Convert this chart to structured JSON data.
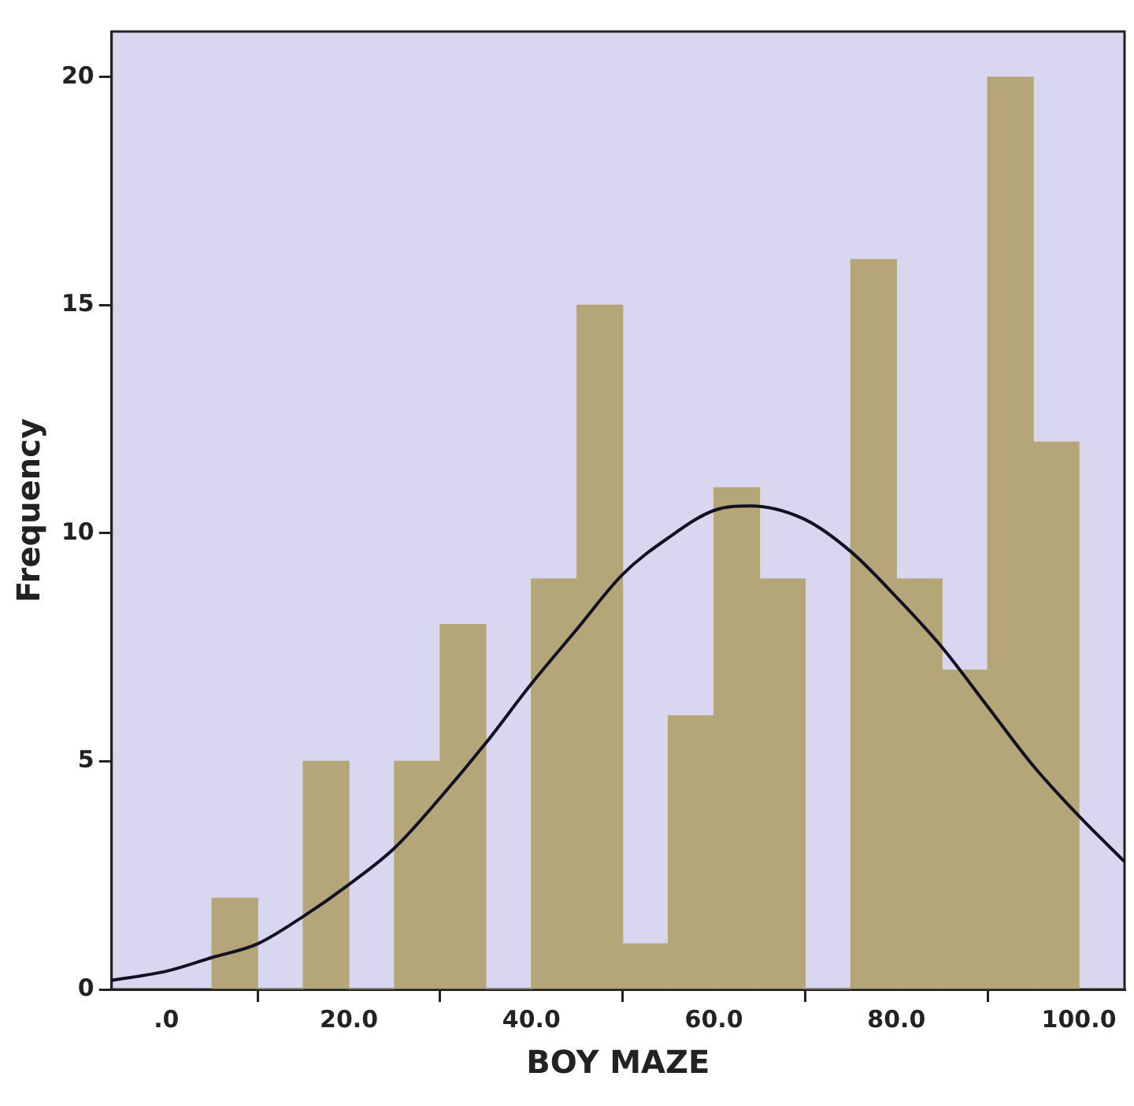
{
  "chart_data": {
    "type": "histogram",
    "xlabel": "BOY MAZE",
    "ylabel": "Frequency",
    "bins": [
      5,
      10,
      15,
      20,
      25,
      30,
      35,
      40,
      45,
      50,
      55,
      60,
      65,
      70,
      75,
      80,
      85,
      90,
      95,
      100
    ],
    "series": [
      {
        "color": "#b5a67a",
        "values": [
          2,
          0,
          5,
          0,
          5,
          8,
          0,
          9,
          15,
          1,
          6,
          11,
          9,
          0,
          16,
          9,
          7,
          20,
          12
        ]
      },
      {
        "type": "line",
        "color": "#111122",
        "x": [
          -6,
          0,
          5,
          10,
          15,
          20,
          25,
          30,
          35,
          40,
          45,
          50,
          55,
          60,
          64,
          70,
          75,
          80,
          85,
          90,
          95,
          100,
          105
        ],
        "values": [
          0.2,
          0.4,
          0.7,
          1.0,
          1.6,
          2.3,
          3.1,
          4.2,
          5.4,
          6.7,
          7.9,
          9.1,
          9.9,
          10.5,
          10.6,
          10.3,
          9.6,
          8.6,
          7.5,
          6.2,
          4.9,
          3.8,
          2.8
        ]
      }
    ],
    "xlim": [
      -6,
      105
    ],
    "ylim": [
      0,
      21
    ],
    "xticks": [
      {
        "value": 0,
        "label": ".0"
      },
      {
        "value": 20,
        "label": "20.0"
      },
      {
        "value": 40,
        "label": "40.0"
      },
      {
        "value": 60,
        "label": "60.0"
      },
      {
        "value": 80,
        "label": "80.0"
      },
      {
        "value": 100,
        "label": "100.0"
      }
    ],
    "yticks": [
      0,
      5,
      10,
      15,
      20
    ],
    "grid": false,
    "legend": false,
    "marker": "none",
    "line_style": "solid"
  }
}
